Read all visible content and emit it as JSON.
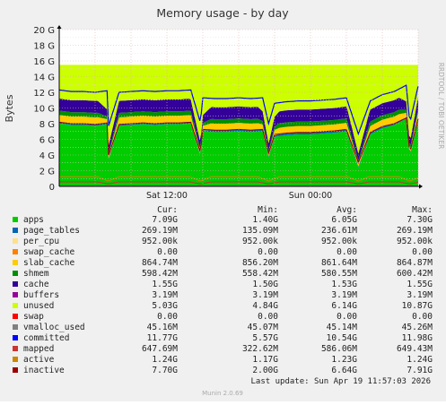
{
  "chart_data": {
    "type": "area",
    "title": "Memory usage - by day",
    "ylabel": "Bytes",
    "side_label": "RRDTOOL / TOBI OETIKER",
    "ylim": [
      0,
      20
    ],
    "y_unit": "G",
    "y_ticks": [
      "0",
      "2 G",
      "4 G",
      "6 G",
      "8 G",
      "10 G",
      "12 G",
      "14 G",
      "16 G",
      "18 G",
      "20 G"
    ],
    "x_ticks": [
      "Sat 12:00",
      "Sun 00:00"
    ],
    "x_range_hours": [
      0,
      30
    ],
    "x_tick_hours": [
      9,
      21
    ],
    "grid": true,
    "dips_hours": [
      4.1,
      11.8,
      17.5,
      25.0,
      29.3
    ],
    "top_envelope_G": {
      "x_hours": [
        0,
        1,
        2,
        3,
        4,
        4.1,
        5,
        6,
        7,
        8,
        9,
        10,
        11,
        11.8,
        12,
        13,
        14,
        15,
        16,
        17,
        17.5,
        18,
        19,
        20,
        21,
        22,
        23,
        24,
        25,
        26,
        27,
        28,
        29,
        29.3,
        30
      ],
      "y": [
        11.2,
        11.0,
        11.0,
        10.9,
        11.1,
        6.5,
        10.9,
        11.0,
        11.1,
        11.0,
        11.1,
        11.1,
        11.2,
        7.0,
        10.2,
        10.1,
        10.1,
        10.2,
        10.1,
        10.2,
        6.9,
        9.5,
        9.7,
        9.8,
        9.8,
        9.9,
        10.0,
        10.2,
        5.6,
        9.8,
        10.6,
        11.0,
        11.8,
        7.0,
        11.7
      ]
    },
    "legend": {
      "headers": [
        "Cur:",
        "Min:",
        "Avg:",
        "Max:"
      ],
      "rows": [
        {
          "name": "apps",
          "color": "#00cc00",
          "cur": "7.09G",
          "min": "1.40G",
          "avg": "6.05G",
          "max": "7.30G"
        },
        {
          "name": "page_tables",
          "color": "#0066b3",
          "cur": "269.19M",
          "min": "135.09M",
          "avg": "236.61M",
          "max": "269.19M"
        },
        {
          "name": "per_cpu",
          "color": "#ffe08a",
          "cur": "952.00k",
          "min": "952.00k",
          "avg": "952.00k",
          "max": "952.00k"
        },
        {
          "name": "swap_cache",
          "color": "#ff8000",
          "cur": "0.00",
          "min": "0.00",
          "avg": "0.00",
          "max": "0.00"
        },
        {
          "name": "slab_cache",
          "color": "#ffcc00",
          "cur": "864.74M",
          "min": "856.20M",
          "avg": "861.64M",
          "max": "864.87M"
        },
        {
          "name": "shmem",
          "color": "#008f00",
          "cur": "598.42M",
          "min": "558.42M",
          "avg": "580.55M",
          "max": "600.42M"
        },
        {
          "name": "cache",
          "color": "#330099",
          "cur": "1.55G",
          "min": "1.50G",
          "avg": "1.53G",
          "max": "1.55G"
        },
        {
          "name": "buffers",
          "color": "#990099",
          "cur": "3.19M",
          "min": "3.19M",
          "avg": "3.19M",
          "max": "3.19M"
        },
        {
          "name": "unused",
          "color": "#ccff00",
          "cur": "5.03G",
          "min": "4.84G",
          "avg": "6.14G",
          "max": "10.87G"
        },
        {
          "name": "swap",
          "color": "#ff0000",
          "cur": "0.00",
          "min": "0.00",
          "avg": "0.00",
          "max": "0.00"
        },
        {
          "name": "vmalloc_used",
          "color": "#808080",
          "cur": "45.16M",
          "min": "45.07M",
          "avg": "45.14M",
          "max": "45.26M"
        },
        {
          "name": "committed",
          "color": "#0000ff",
          "cur": "11.77G",
          "min": "5.57G",
          "avg": "10.54G",
          "max": "11.98G"
        },
        {
          "name": "mapped",
          "color": "#cc3333",
          "cur": "647.69M",
          "min": "322.62M",
          "avg": "586.06M",
          "max": "649.43M"
        },
        {
          "name": "active",
          "color": "#cc8800",
          "cur": "1.24G",
          "min": "1.17G",
          "avg": "1.23G",
          "max": "1.24G"
        },
        {
          "name": "inactive",
          "color": "#990000",
          "cur": "7.70G",
          "min": "2.00G",
          "avg": "6.64G",
          "max": "7.91G"
        }
      ]
    }
  },
  "footer": {
    "last_update": "Last update: Sun Apr 19 11:57:03 2026",
    "generator": "Munin 2.0.69"
  }
}
